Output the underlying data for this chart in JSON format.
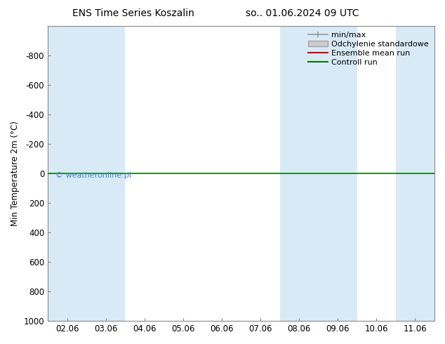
{
  "title_left": "ENS Time Series Koszalin",
  "title_right": "so.. 01.06.2024 09 UTC",
  "ylabel": "Min Temperature 2m (°C)",
  "ylim_bottom": 1000,
  "ylim_top": -1000,
  "yticks": [
    -800,
    -600,
    -400,
    -200,
    0,
    200,
    400,
    600,
    800,
    1000
  ],
  "xtick_labels": [
    "02.06",
    "03.06",
    "04.06",
    "05.06",
    "06.06",
    "07.06",
    "08.06",
    "09.06",
    "10.06",
    "11.06"
  ],
  "xtick_positions": [
    0,
    1,
    2,
    3,
    4,
    5,
    6,
    7,
    8,
    9
  ],
  "blue_band_positions": [
    0,
    1,
    6,
    7,
    9
  ],
  "blue_band_color": "#d8eaf6",
  "green_line_y": 0,
  "green_line_color": "#007700",
  "background_color": "#ffffff",
  "watermark": "© weatheronline.pl",
  "watermark_color": "#4488cc",
  "title_fontsize": 10,
  "tick_fontsize": 8.5,
  "ylabel_fontsize": 8.5,
  "legend_fontsize": 8
}
